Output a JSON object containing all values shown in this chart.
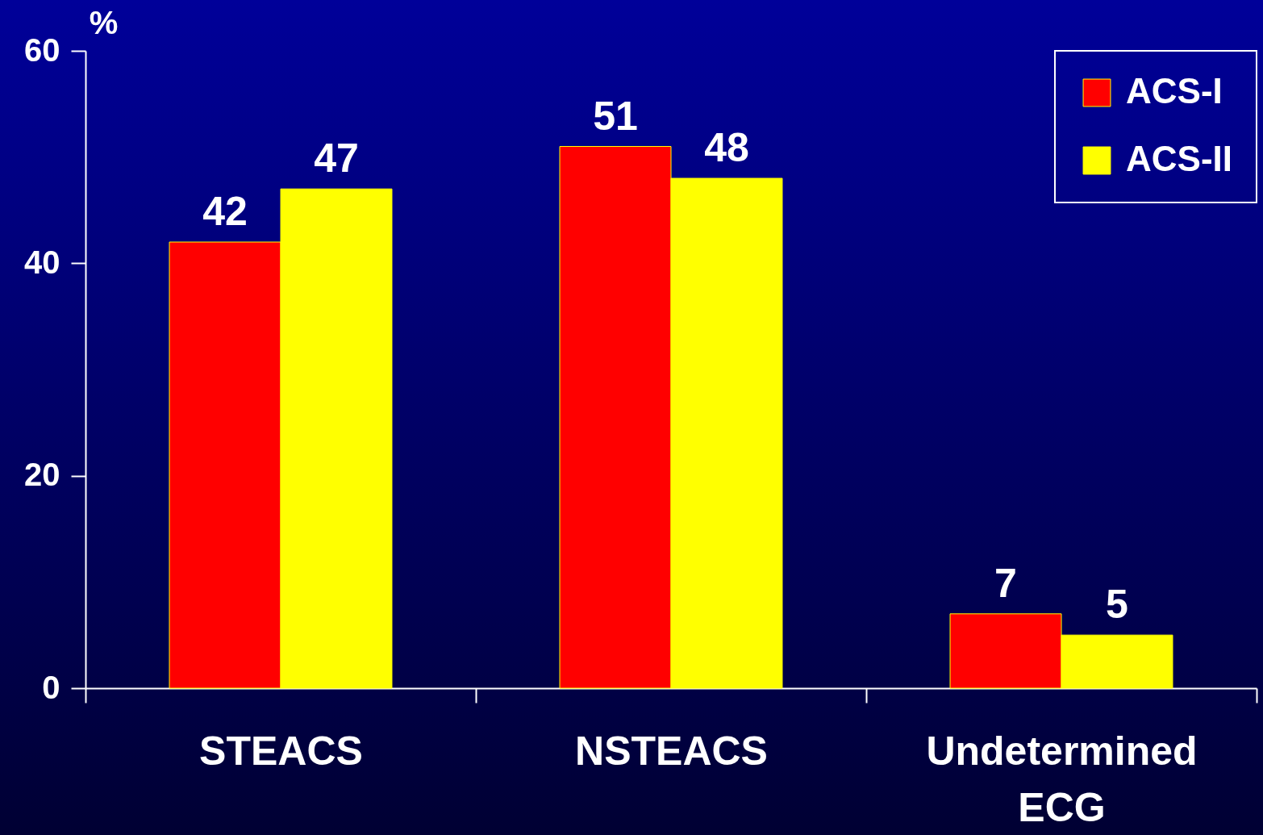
{
  "chart_data": {
    "type": "bar",
    "ylabel": "%",
    "categories": [
      "STEACS",
      "NSTEACS",
      "Undetermined ECG"
    ],
    "series": [
      {
        "name": "ACS-I",
        "color": "#ff0000",
        "values": [
          42,
          51,
          7
        ]
      },
      {
        "name": "ACS-II",
        "color": "#ffff00",
        "values": [
          47,
          48,
          5
        ]
      }
    ],
    "ylim": [
      0,
      60
    ],
    "yticks": [
      0,
      20,
      40,
      60
    ],
    "data_labels": true,
    "legend": "top right",
    "grid": false
  }
}
